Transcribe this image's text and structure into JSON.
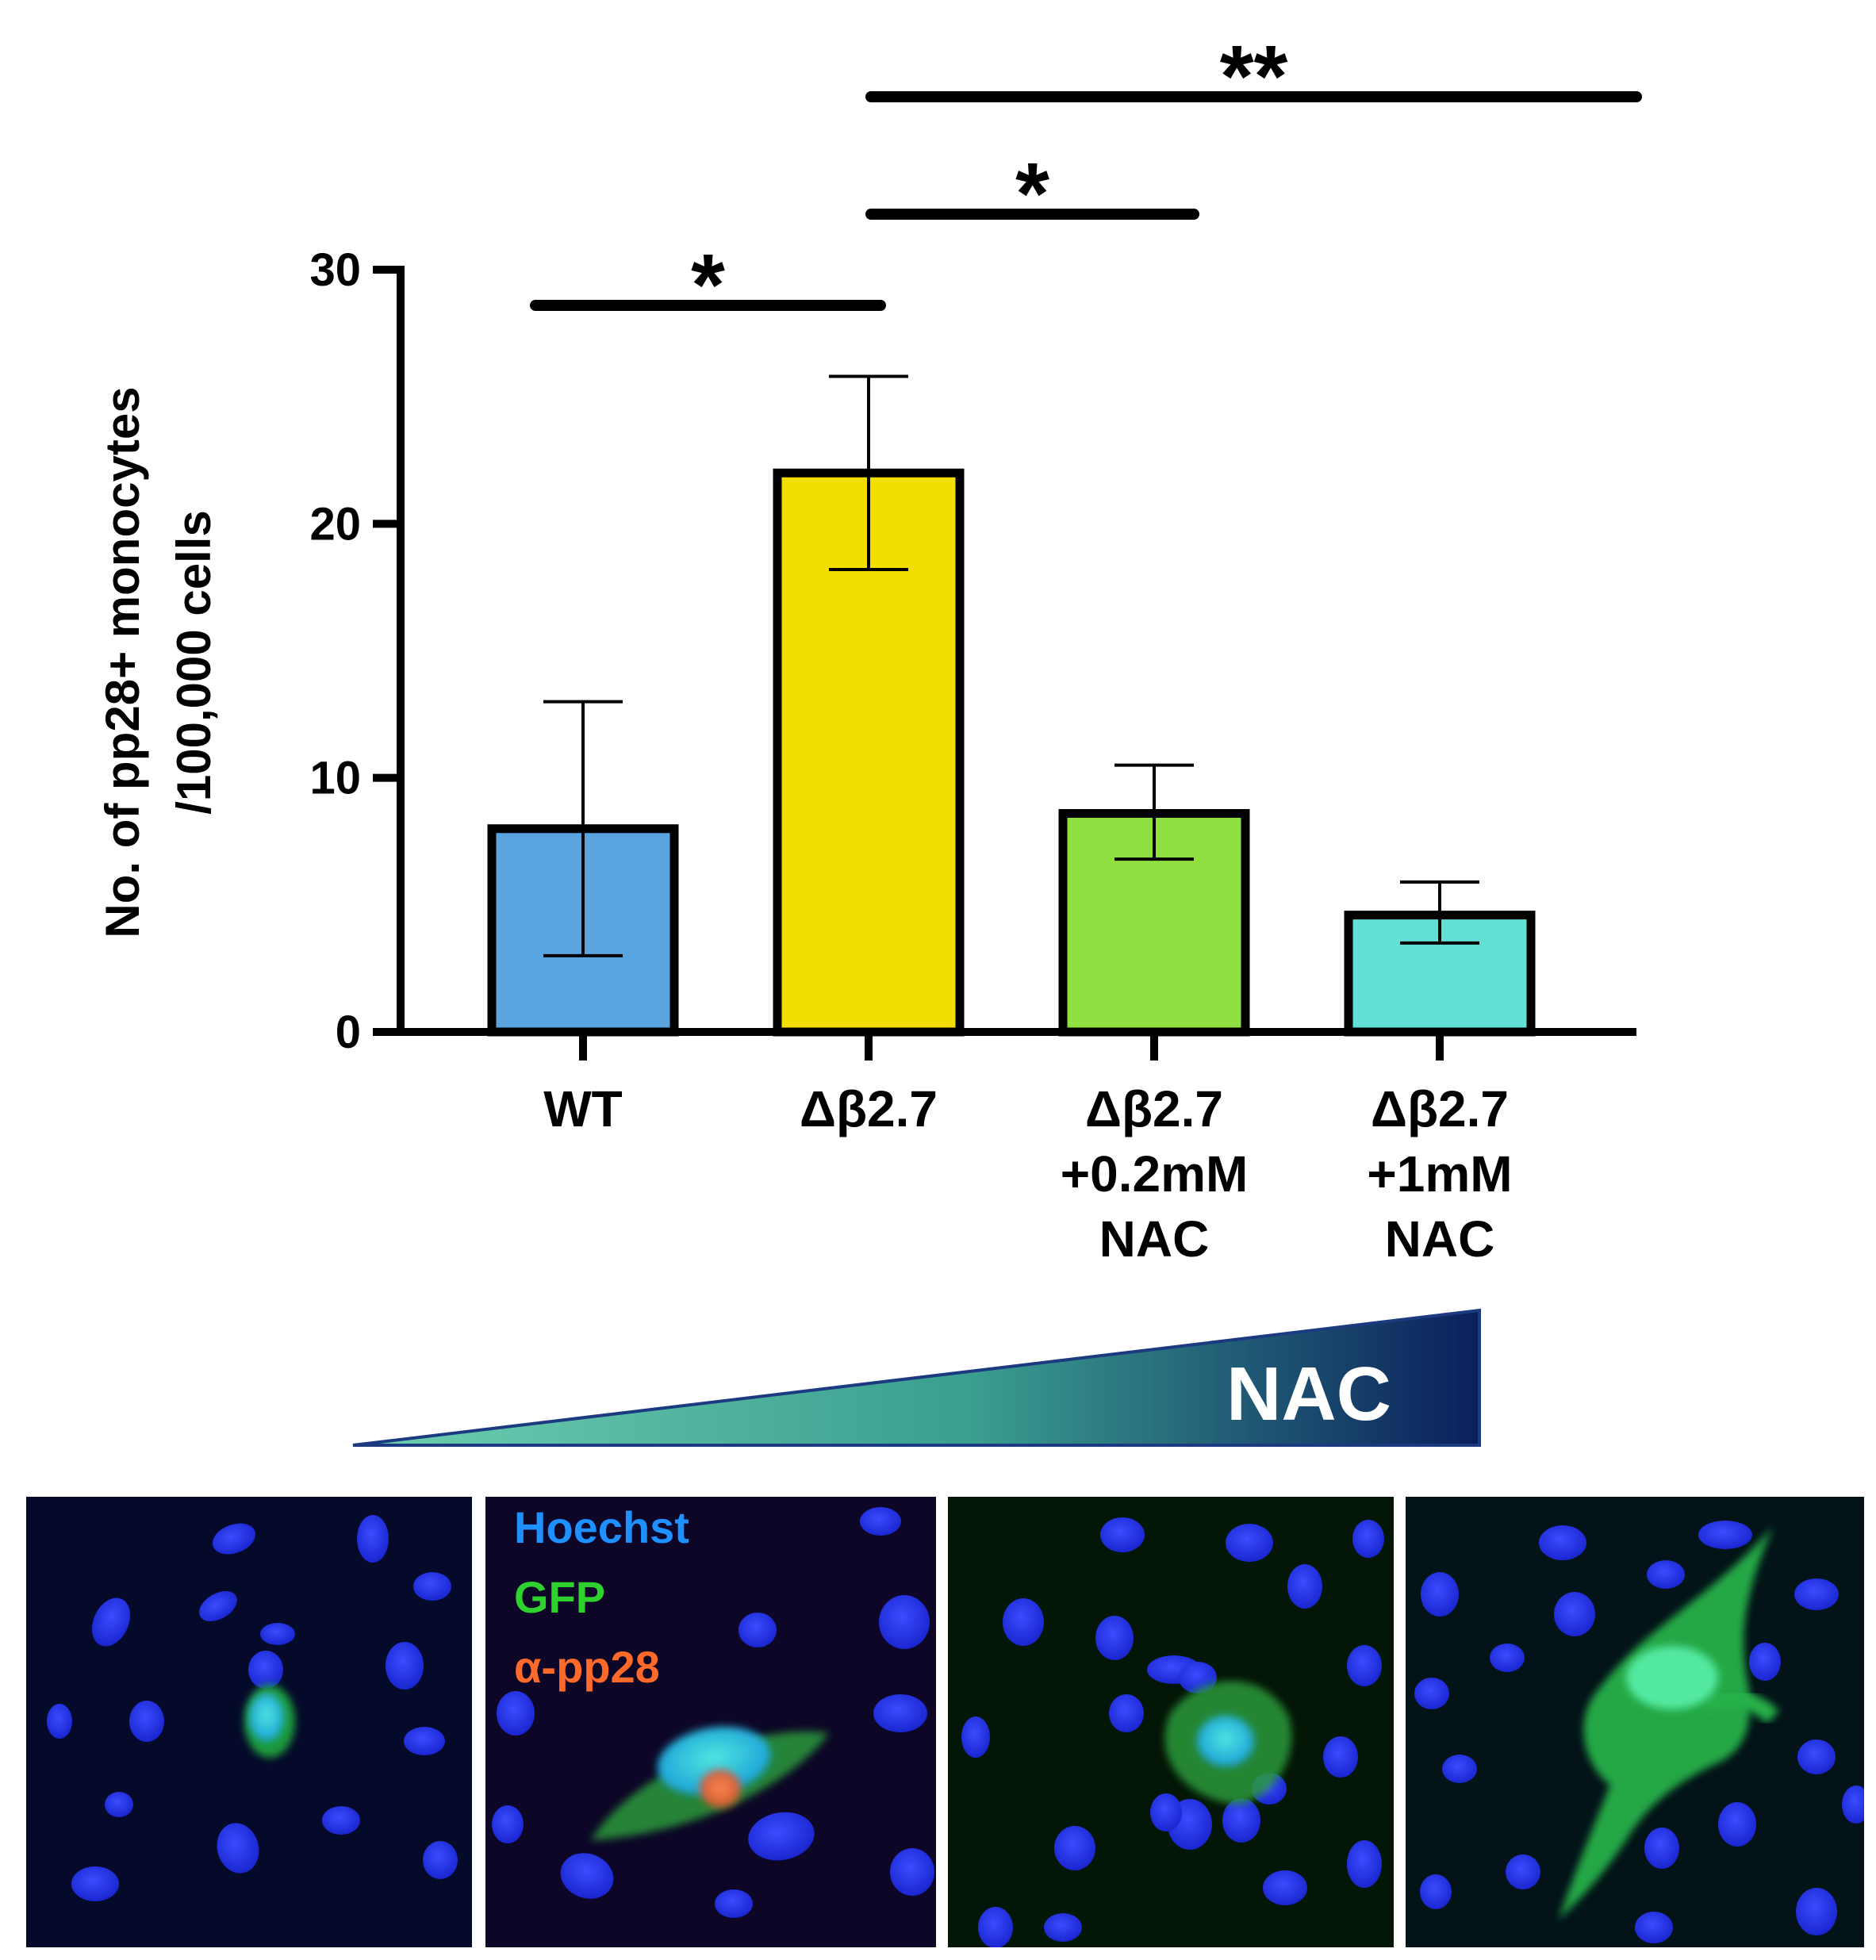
{
  "chart_data": {
    "type": "bar",
    "ylabel_line1": "No. of pp28+ monocytes",
    "ylabel_line2": "/100,000 cells",
    "ylim": [
      0,
      30
    ],
    "yticks": [
      "0",
      "10",
      "20",
      "30"
    ],
    "grid": false,
    "categories": [
      [
        "WT"
      ],
      [
        "Δβ2.7"
      ],
      [
        "Δβ2.7",
        "+0.2mM",
        "NAC"
      ],
      [
        "Δβ2.7",
        "+1mM",
        "NAC"
      ]
    ],
    "values": [
      8.0,
      22.0,
      8.6,
      4.6
    ],
    "error_low": [
      3.0,
      18.2,
      6.8,
      3.5
    ],
    "error_high": [
      13.0,
      25.8,
      10.5,
      5.9
    ],
    "bar_colors": [
      "#5aa5e0",
      "#f2df00",
      "#8fe040",
      "#62e0d6"
    ],
    "significance": [
      {
        "from": 0,
        "to": 1,
        "label": "*"
      },
      {
        "from": 1,
        "to": 2,
        "label": "*"
      },
      {
        "from": 1,
        "to": 3,
        "label": "**"
      }
    ]
  },
  "gradient": {
    "label": "NAC",
    "color_start": "#6ecfb0",
    "color_end": "#0a1f5c"
  },
  "micrographs": {
    "legend": {
      "hoechst": "Hoechst",
      "gfp": "GFP",
      "pp28": "α-pp28"
    },
    "legend_colors": {
      "hoechst": "#1e90ff",
      "gfp": "#2ed12e",
      "pp28": "#ff6a2a"
    },
    "nuclei_color": "#1a2cf0",
    "panel_backgrounds": [
      "#05092a",
      "#0d0626",
      "#041606",
      "#031318"
    ]
  }
}
